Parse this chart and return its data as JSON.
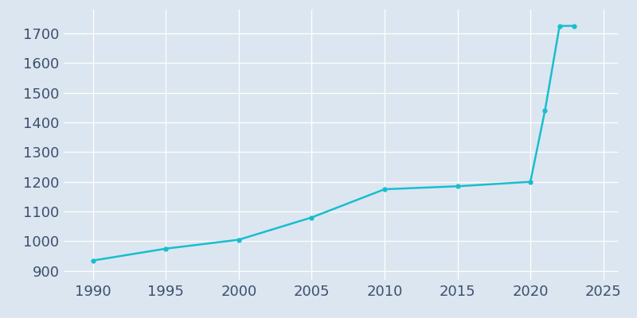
{
  "years": [
    1990,
    1995,
    2000,
    2005,
    2010,
    2015,
    2020,
    2021,
    2022,
    2023
  ],
  "population": [
    935,
    975,
    1005,
    1080,
    1175,
    1185,
    1200,
    1440,
    1725,
    1725
  ],
  "line_color": "#17becf",
  "marker_color": "#17becf",
  "background_color": "#dce6f0",
  "plot_bg_color": "#dce6f0",
  "xlim": [
    1988,
    2026
  ],
  "ylim": [
    870,
    1780
  ],
  "xticks": [
    1990,
    1995,
    2000,
    2005,
    2010,
    2015,
    2020,
    2025
  ],
  "yticks": [
    900,
    1000,
    1100,
    1200,
    1300,
    1400,
    1500,
    1600,
    1700
  ],
  "tick_color": "#3d4f6e",
  "grid_color": "#ffffff",
  "spine_color": "#dce6f0",
  "tick_fontsize": 13
}
